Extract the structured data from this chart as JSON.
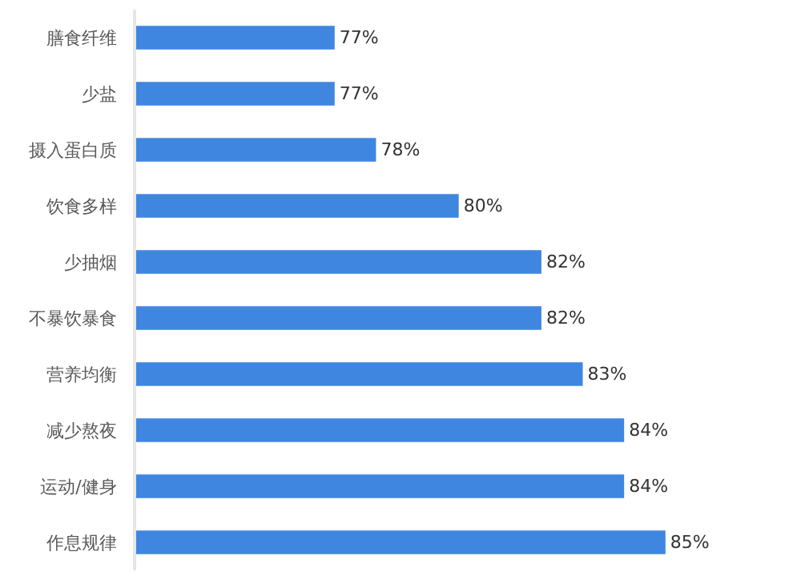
{
  "chart_data": {
    "type": "bar",
    "orientation": "horizontal",
    "categories": [
      "膳食纤维",
      "少盐",
      "摄入蛋白质",
      "饮食多样",
      "少抽烟",
      "不暴饮暴食",
      "营养均衡",
      "减少熬夜",
      "运动/健身",
      "作息规律"
    ],
    "values": [
      77,
      77,
      78,
      80,
      82,
      82,
      83,
      84,
      84,
      85
    ],
    "value_labels": [
      "77%",
      "77%",
      "78%",
      "80%",
      "82%",
      "82%",
      "83%",
      "84%",
      "84%",
      "85%"
    ],
    "color": "#3f86e0",
    "xlim": [
      72.2,
      88.2
    ],
    "tick_labels": "y"
  }
}
